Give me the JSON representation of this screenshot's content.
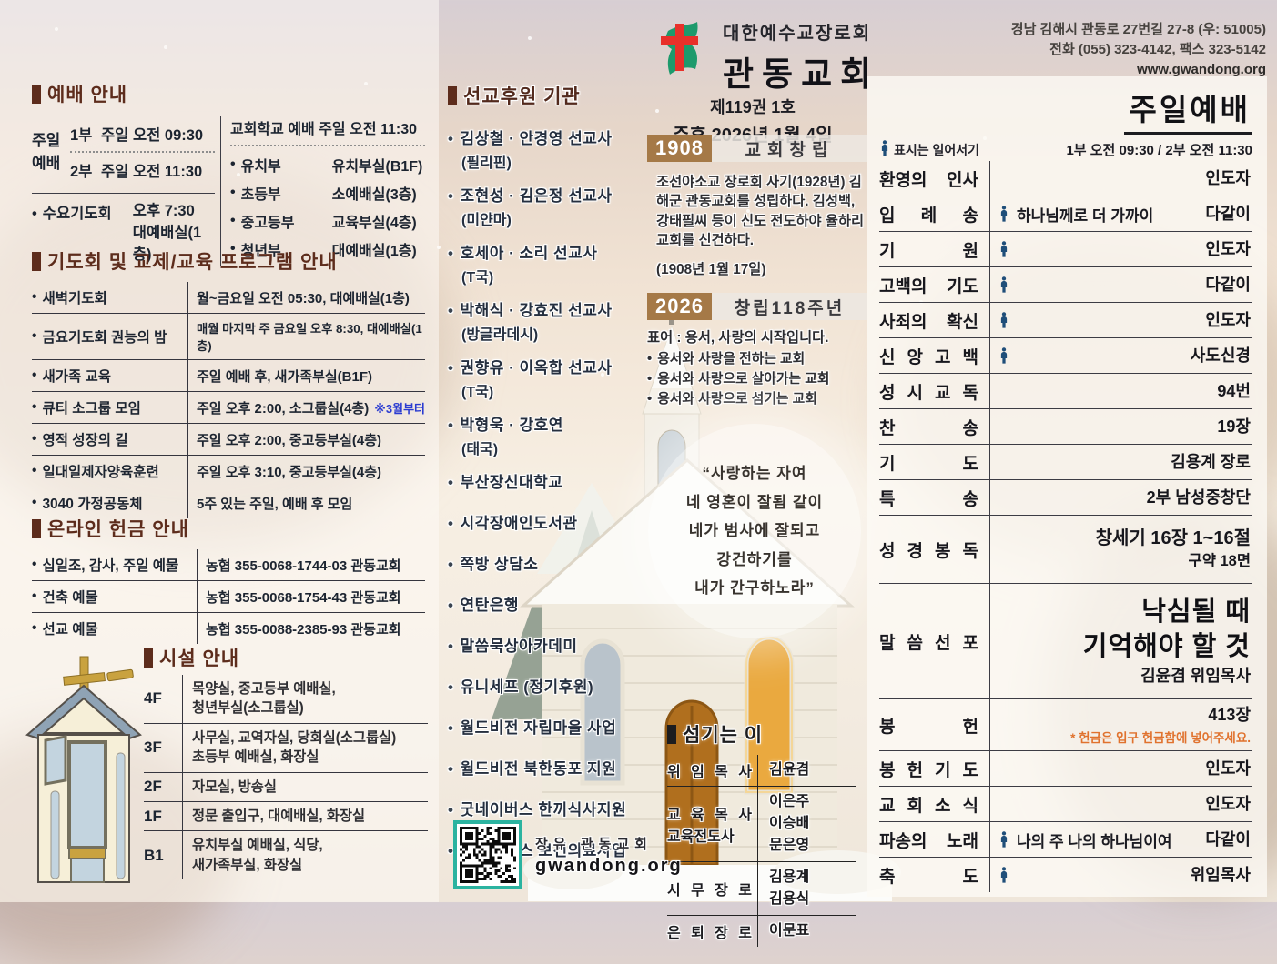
{
  "colors": {
    "accent_maroon": "#5d2c1c",
    "badge_brown": "#a57947",
    "stand_icon_navy": "#1f4e79",
    "note_blue": "#2a3bd1",
    "note_orange": "#e0722e",
    "qr_teal": "#2bb3a0"
  },
  "header": {
    "denomination": "대한예수교장로회",
    "church_name": "관동교회",
    "issue": "제119권 1호",
    "date": "주후 2026년 1월 4일",
    "address_line1": "경남 김해시 관동로 27번길 27-8 (우: 51005)",
    "address_line2": "전화 (055) 323-4142, 팩스 323-5142",
    "website": "www.gwandong.org"
  },
  "worship_info": {
    "title": "예배 안내",
    "sunday_label_1": "주일",
    "sunday_label_2": "예배",
    "part1_label": "1부",
    "part1_time": "주일 오전 09:30",
    "part2_label": "2부",
    "part2_time": "주일 오전 11:30",
    "wed_name": "수요기도회",
    "wed_time": "오후 7:30",
    "wed_place": "대예배실(1층)",
    "school_title": "교회학교 예배 주일 오전 11:30",
    "school_rows": [
      {
        "dept": "유치부",
        "place": "유치부실(B1F)"
      },
      {
        "dept": "초등부",
        "place": "소예배실(3층)"
      },
      {
        "dept": "중고등부",
        "place": "교육부실(4층)"
      },
      {
        "dept": "청년부",
        "place": "대예배실(1층)"
      }
    ]
  },
  "programs": {
    "title": "기도회 및 교제/교육 프로그램 안내",
    "rows": [
      {
        "name": "새벽기도회",
        "detail": "월~금요일 오전 05:30, 대예배실(1층)",
        "note": ""
      },
      {
        "name": "금요기도회 권능의 밤",
        "detail": "매월 마지막 주 금요일 오후 8:30, 대예배실(1층)",
        "note": ""
      },
      {
        "name": "새가족 교육",
        "detail": "주일 예배 후, 새가족부실(B1F)",
        "note": ""
      },
      {
        "name": "큐티 소그룹 모임",
        "detail": "주일 오후 2:00, 소그룹실(4층)",
        "note": "※3월부터"
      },
      {
        "name": "영적 성장의 길",
        "detail": "주일 오후 2:00, 중고등부실(4층)",
        "note": ""
      },
      {
        "name": "일대일제자양육훈련",
        "detail": "주일 오후 3:10, 중고등부실(4층)",
        "note": ""
      },
      {
        "name": "3040 가정공동체",
        "detail": "5주 있는 주일, 예배 후 모임",
        "note": ""
      }
    ]
  },
  "online_offering": {
    "title": "온라인 헌금 안내",
    "rows": [
      {
        "name": "십일조, 감사, 주일 예물",
        "account": "농협 355-0068-1744-03 관동교회"
      },
      {
        "name": "건축 예물",
        "account": "농협 355-0068-1754-43 관동교회"
      },
      {
        "name": "선교 예물",
        "account": "농협 355-0088-2385-93 관동교회"
      }
    ]
  },
  "facilities": {
    "title": "시설 안내",
    "rows": [
      {
        "floor": "4F",
        "lines": [
          "목양실, 중고등부 예배실,",
          "청년부실(소그룹실)"
        ]
      },
      {
        "floor": "3F",
        "lines": [
          "사무실, 교역자실, 당회실(소그룹실)",
          "초등부 예배실, 화장실"
        ]
      },
      {
        "floor": "2F",
        "lines": [
          "자모실, 방송실"
        ]
      },
      {
        "floor": "1F",
        "lines": [
          "정문 출입구, 대예배실, 화장실"
        ]
      },
      {
        "floor": "B1",
        "lines": [
          "유치부실 예배실, 식당,",
          "새가족부실, 화장실"
        ]
      }
    ]
  },
  "missions": {
    "title": "선교후원 기관",
    "items": [
      {
        "name": "김상철 · 안경영 선교사",
        "country": "(필리핀)"
      },
      {
        "name": "조현성 · 김은정 선교사",
        "country": "(미얀마)"
      },
      {
        "name": "호세아 · 소리 선교사",
        "country": "(T국)"
      },
      {
        "name": "박해식 · 강효진 선교사",
        "country": "(방글라데시)"
      },
      {
        "name": "권향유 · 이옥합 선교사",
        "country": "(T국)"
      },
      {
        "name": "박형욱 · 강호연",
        "country": "(태국)"
      },
      {
        "name": "부산장신대학교",
        "country": ""
      },
      {
        "name": "시각장애인도서관",
        "country": ""
      },
      {
        "name": "쪽방 상담소",
        "country": ""
      },
      {
        "name": "연탄은행",
        "country": ""
      },
      {
        "name": "말씀묵상아카데미",
        "country": ""
      },
      {
        "name": "유니세프 (정기후원)",
        "country": ""
      },
      {
        "name": "월드비전 자립마을 사업",
        "country": ""
      },
      {
        "name": "월드비전 북한동포 지원",
        "country": ""
      },
      {
        "name": "굿네이버스 한끼식사지원",
        "country": ""
      },
      {
        "name": "굿네이버스 보건의료사업",
        "country": ""
      }
    ]
  },
  "founding": {
    "year1": "1908",
    "title1": "교회창립",
    "desc1": "조선야소교 장로회 사기(1928년) 김해군 관동교회를 성립하다. 김성백, 강태필씨 등이 신도 전도하야 율하리교회를 신건하다.",
    "desc1_date": "(1908년 1월 17일)",
    "year2": "2026",
    "title2": "창립118주년",
    "motto": "표어 : 용서, 사랑의 시작입니다.",
    "bullets": [
      "용서와 사랑을 전하는 교회",
      "용서와 사랑으로 살아가는 교회",
      "용서와 사랑으로 섬기는 교회"
    ]
  },
  "verse": {
    "lines": [
      "“사랑하는 자여",
      "네 영혼이 잘됨 같이",
      "네가 범사에 잘되고",
      "강건하기를",
      "내가 간구하노라”"
    ]
  },
  "servants": {
    "title": "섬기는 이",
    "rows": [
      {
        "roles": [
          "위 임 목 사"
        ],
        "names": [
          "김윤겸"
        ]
      },
      {
        "roles": [
          "교 육 목 사",
          "교육전도사"
        ],
        "names": [
          "이은주",
          "이승배",
          "문은영"
        ]
      },
      {
        "roles": [
          "시 무 장 로"
        ],
        "names": [
          "김용계",
          "김용식"
        ]
      },
      {
        "roles": [
          "은 퇴 장 로"
        ],
        "names": [
          "이문표"
        ]
      }
    ]
  },
  "qr": {
    "label_line1": "장유 관동교회",
    "label_line2": "gwandong.org"
  },
  "service": {
    "title": "주일예배",
    "legend": "표시는 일어서기",
    "times": "1부 오전 09:30 / 2부 오전 11:30",
    "rows": [
      {
        "item": "환영의 인사",
        "stand": false,
        "content": "",
        "who": "인도자"
      },
      {
        "item": "입 례 송",
        "stand": true,
        "content": "하나님께로 더 가까이",
        "who": "다같이"
      },
      {
        "item": "기 원",
        "stand": true,
        "content": "",
        "who": "인도자"
      },
      {
        "item": "고백의 기도",
        "stand": true,
        "content": "",
        "who": "다같이"
      },
      {
        "item": "사죄의 확신",
        "stand": true,
        "content": "",
        "who": "인도자"
      },
      {
        "item": "신 앙 고 백",
        "stand": true,
        "content": "",
        "who": "사도신경"
      },
      {
        "item": "성 시 교 독",
        "stand": false,
        "content": "",
        "who": "94번"
      },
      {
        "item": "찬 송",
        "stand": false,
        "content": "",
        "who": "19장"
      },
      {
        "item": "기 도",
        "stand": false,
        "content": "",
        "who": "김용계 장로"
      },
      {
        "item": "특 송",
        "stand": false,
        "content": "",
        "who": "2부 남성중창단"
      },
      {
        "item": "성 경 봉 독",
        "stand": false,
        "content": "",
        "who": "창세기 16장 1~16절",
        "who2": "구약 18면"
      },
      {
        "item": "말 씀 선 포",
        "stand": false,
        "content": "",
        "big": [
          "낙심될 때",
          "기억해야 할 것"
        ],
        "who": "김윤겸 위임목사"
      },
      {
        "item": "봉 헌",
        "stand": false,
        "content": "",
        "who": "413장",
        "note": "* 헌금은 입구 헌금함에 넣어주세요."
      },
      {
        "item": "봉 헌 기 도",
        "stand": false,
        "content": "",
        "who": "인도자"
      },
      {
        "item": "교 회 소 식",
        "stand": false,
        "content": "",
        "who": "인도자"
      },
      {
        "item": "파송의 노래",
        "stand": true,
        "content": "나의 주 나의 하나님이여",
        "who": "다같이"
      },
      {
        "item": "축 도",
        "stand": true,
        "content": "",
        "who": "위임목사"
      }
    ]
  }
}
